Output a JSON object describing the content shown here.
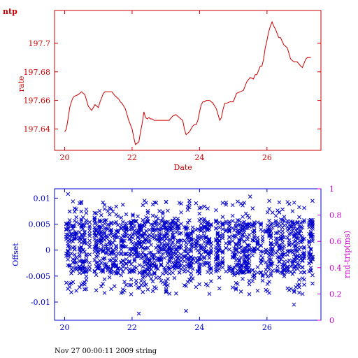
{
  "chart_data": [
    {
      "type": "line",
      "title": "ntp",
      "xlabel": "Date",
      "ylabel": "rate",
      "xlim": [
        19.7,
        27.6
      ],
      "ylim": [
        197.625,
        197.723
      ],
      "xticks": [
        20,
        22,
        24,
        26
      ],
      "yticks": [
        197.64,
        197.66,
        197.68,
        197.7
      ],
      "xtick_labels": [
        "20",
        "22",
        "24",
        "26"
      ],
      "ytick_labels": [
        "197.64",
        "197.66",
        "197.68",
        "197.7"
      ],
      "color": "#cc0000",
      "series": [
        {
          "x": [
            20.0,
            20.05,
            20.1,
            20.15,
            20.2,
            20.25,
            20.3,
            20.4,
            20.5,
            20.55,
            20.6,
            20.65,
            20.7,
            20.8,
            20.9,
            21.0,
            21.05,
            21.1,
            21.15,
            21.2,
            21.3,
            21.4,
            21.5,
            21.6,
            21.65,
            21.7,
            21.8,
            21.9,
            22.0,
            22.05,
            22.1,
            22.15,
            22.2,
            22.25,
            22.3,
            22.35,
            22.4,
            22.45,
            22.5,
            22.55,
            22.6,
            22.65,
            22.7,
            22.8,
            22.9,
            23.0,
            23.1,
            23.2,
            23.3,
            23.4,
            23.5,
            23.55,
            23.6,
            23.65,
            23.7,
            23.75,
            23.8,
            23.85,
            23.9,
            23.95,
            24.0,
            24.05,
            24.1,
            24.15,
            24.2,
            24.3,
            24.4,
            24.5,
            24.6,
            24.65,
            24.7,
            24.75,
            24.8,
            24.9,
            25.0,
            25.1,
            25.2,
            25.3,
            25.4,
            25.5,
            25.6,
            25.65,
            25.7,
            25.75,
            25.8,
            25.85,
            25.9,
            25.95,
            26.0,
            26.05,
            26.1,
            26.15,
            26.2,
            26.25,
            26.3,
            26.35,
            26.4,
            26.5,
            26.6,
            26.7,
            26.8,
            26.9,
            27.0,
            27.05,
            27.1,
            27.15,
            27.2,
            27.3
          ],
          "y": [
            197.638,
            197.64,
            197.647,
            197.655,
            197.659,
            197.662,
            197.663,
            197.664,
            197.666,
            197.665,
            197.664,
            197.66,
            197.656,
            197.653,
            197.657,
            197.655,
            197.659,
            197.662,
            197.665,
            197.666,
            197.666,
            197.666,
            197.663,
            197.661,
            197.659,
            197.658,
            197.654,
            197.646,
            197.64,
            197.634,
            197.629,
            197.63,
            197.631,
            197.638,
            197.644,
            197.652,
            197.648,
            197.647,
            197.648,
            197.647,
            197.647,
            197.646,
            197.646,
            197.646,
            197.646,
            197.646,
            197.646,
            197.649,
            197.65,
            197.648,
            197.646,
            197.64,
            197.636,
            197.637,
            197.638,
            197.64,
            197.642,
            197.643,
            197.643,
            197.646,
            197.652,
            197.657,
            197.659,
            197.659,
            197.66,
            197.66,
            197.658,
            197.654,
            197.646,
            197.648,
            197.654,
            197.658,
            197.658,
            197.659,
            197.659,
            197.665,
            197.666,
            197.667,
            197.673,
            197.676,
            197.675,
            197.678,
            197.678,
            197.681,
            197.684,
            197.684,
            197.689,
            197.697,
            197.702,
            197.708,
            197.712,
            197.715,
            197.712,
            197.71,
            197.707,
            197.704,
            197.704,
            197.699,
            197.697,
            197.689,
            197.687,
            197.687,
            197.684,
            197.683,
            197.686,
            197.689,
            197.69,
            197.69
          ]
        }
      ]
    },
    {
      "type": "scatter",
      "title": "",
      "xlabel": "",
      "ylabel": "Offset",
      "ylabel_right": "rnd-trip(ms)",
      "xlim": [
        19.7,
        27.6
      ],
      "ylim": [
        -0.0135,
        0.0118
      ],
      "ylim_right": [
        0,
        1
      ],
      "xticks": [
        20,
        22,
        24,
        26
      ],
      "yticks": [
        -0.01,
        -0.005,
        0,
        0.005,
        0.01
      ],
      "yticks_right": [
        0,
        0.2,
        0.4,
        0.6,
        0.8,
        1
      ],
      "xtick_labels": [
        "20",
        "22",
        "24",
        "26"
      ],
      "ytick_labels": [
        "-0.01",
        "-0.005",
        "0",
        "0.005",
        "0.01"
      ],
      "ytick_labels_right": [
        "0",
        "0.2",
        "0.4",
        "0.6",
        "0.8",
        "1"
      ],
      "marker": "x",
      "color": "#0000cc",
      "right_axis_color": "#cc00cc",
      "offset_band": {
        "x_range": [
          20.0,
          27.35
        ],
        "dense_range": [
          -0.0045,
          0.0058
        ],
        "sparse_range": [
          -0.0085,
          0.0095
        ],
        "typical_extent": [
          -0.009,
          0.009
        ],
        "max_offset": 0.0108,
        "min_offset": -0.0122
      }
    }
  ],
  "footer_text": "Nov 27 00:00:11 2009 string"
}
